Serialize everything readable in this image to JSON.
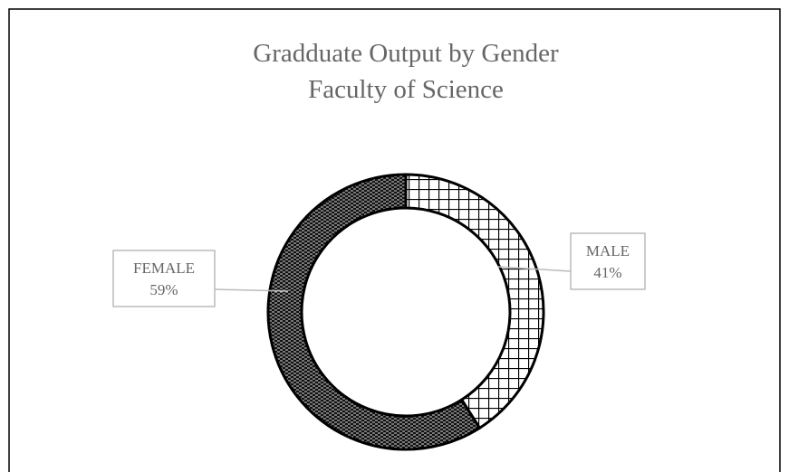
{
  "chart_data": {
    "type": "donut",
    "title": "Gradduate Output by Gender",
    "subtitle": "Faculty of Science",
    "categories": [
      "MALE",
      "FEMALE"
    ],
    "values": [
      41,
      59
    ],
    "value_labels": [
      "41%",
      "59%"
    ]
  }
}
